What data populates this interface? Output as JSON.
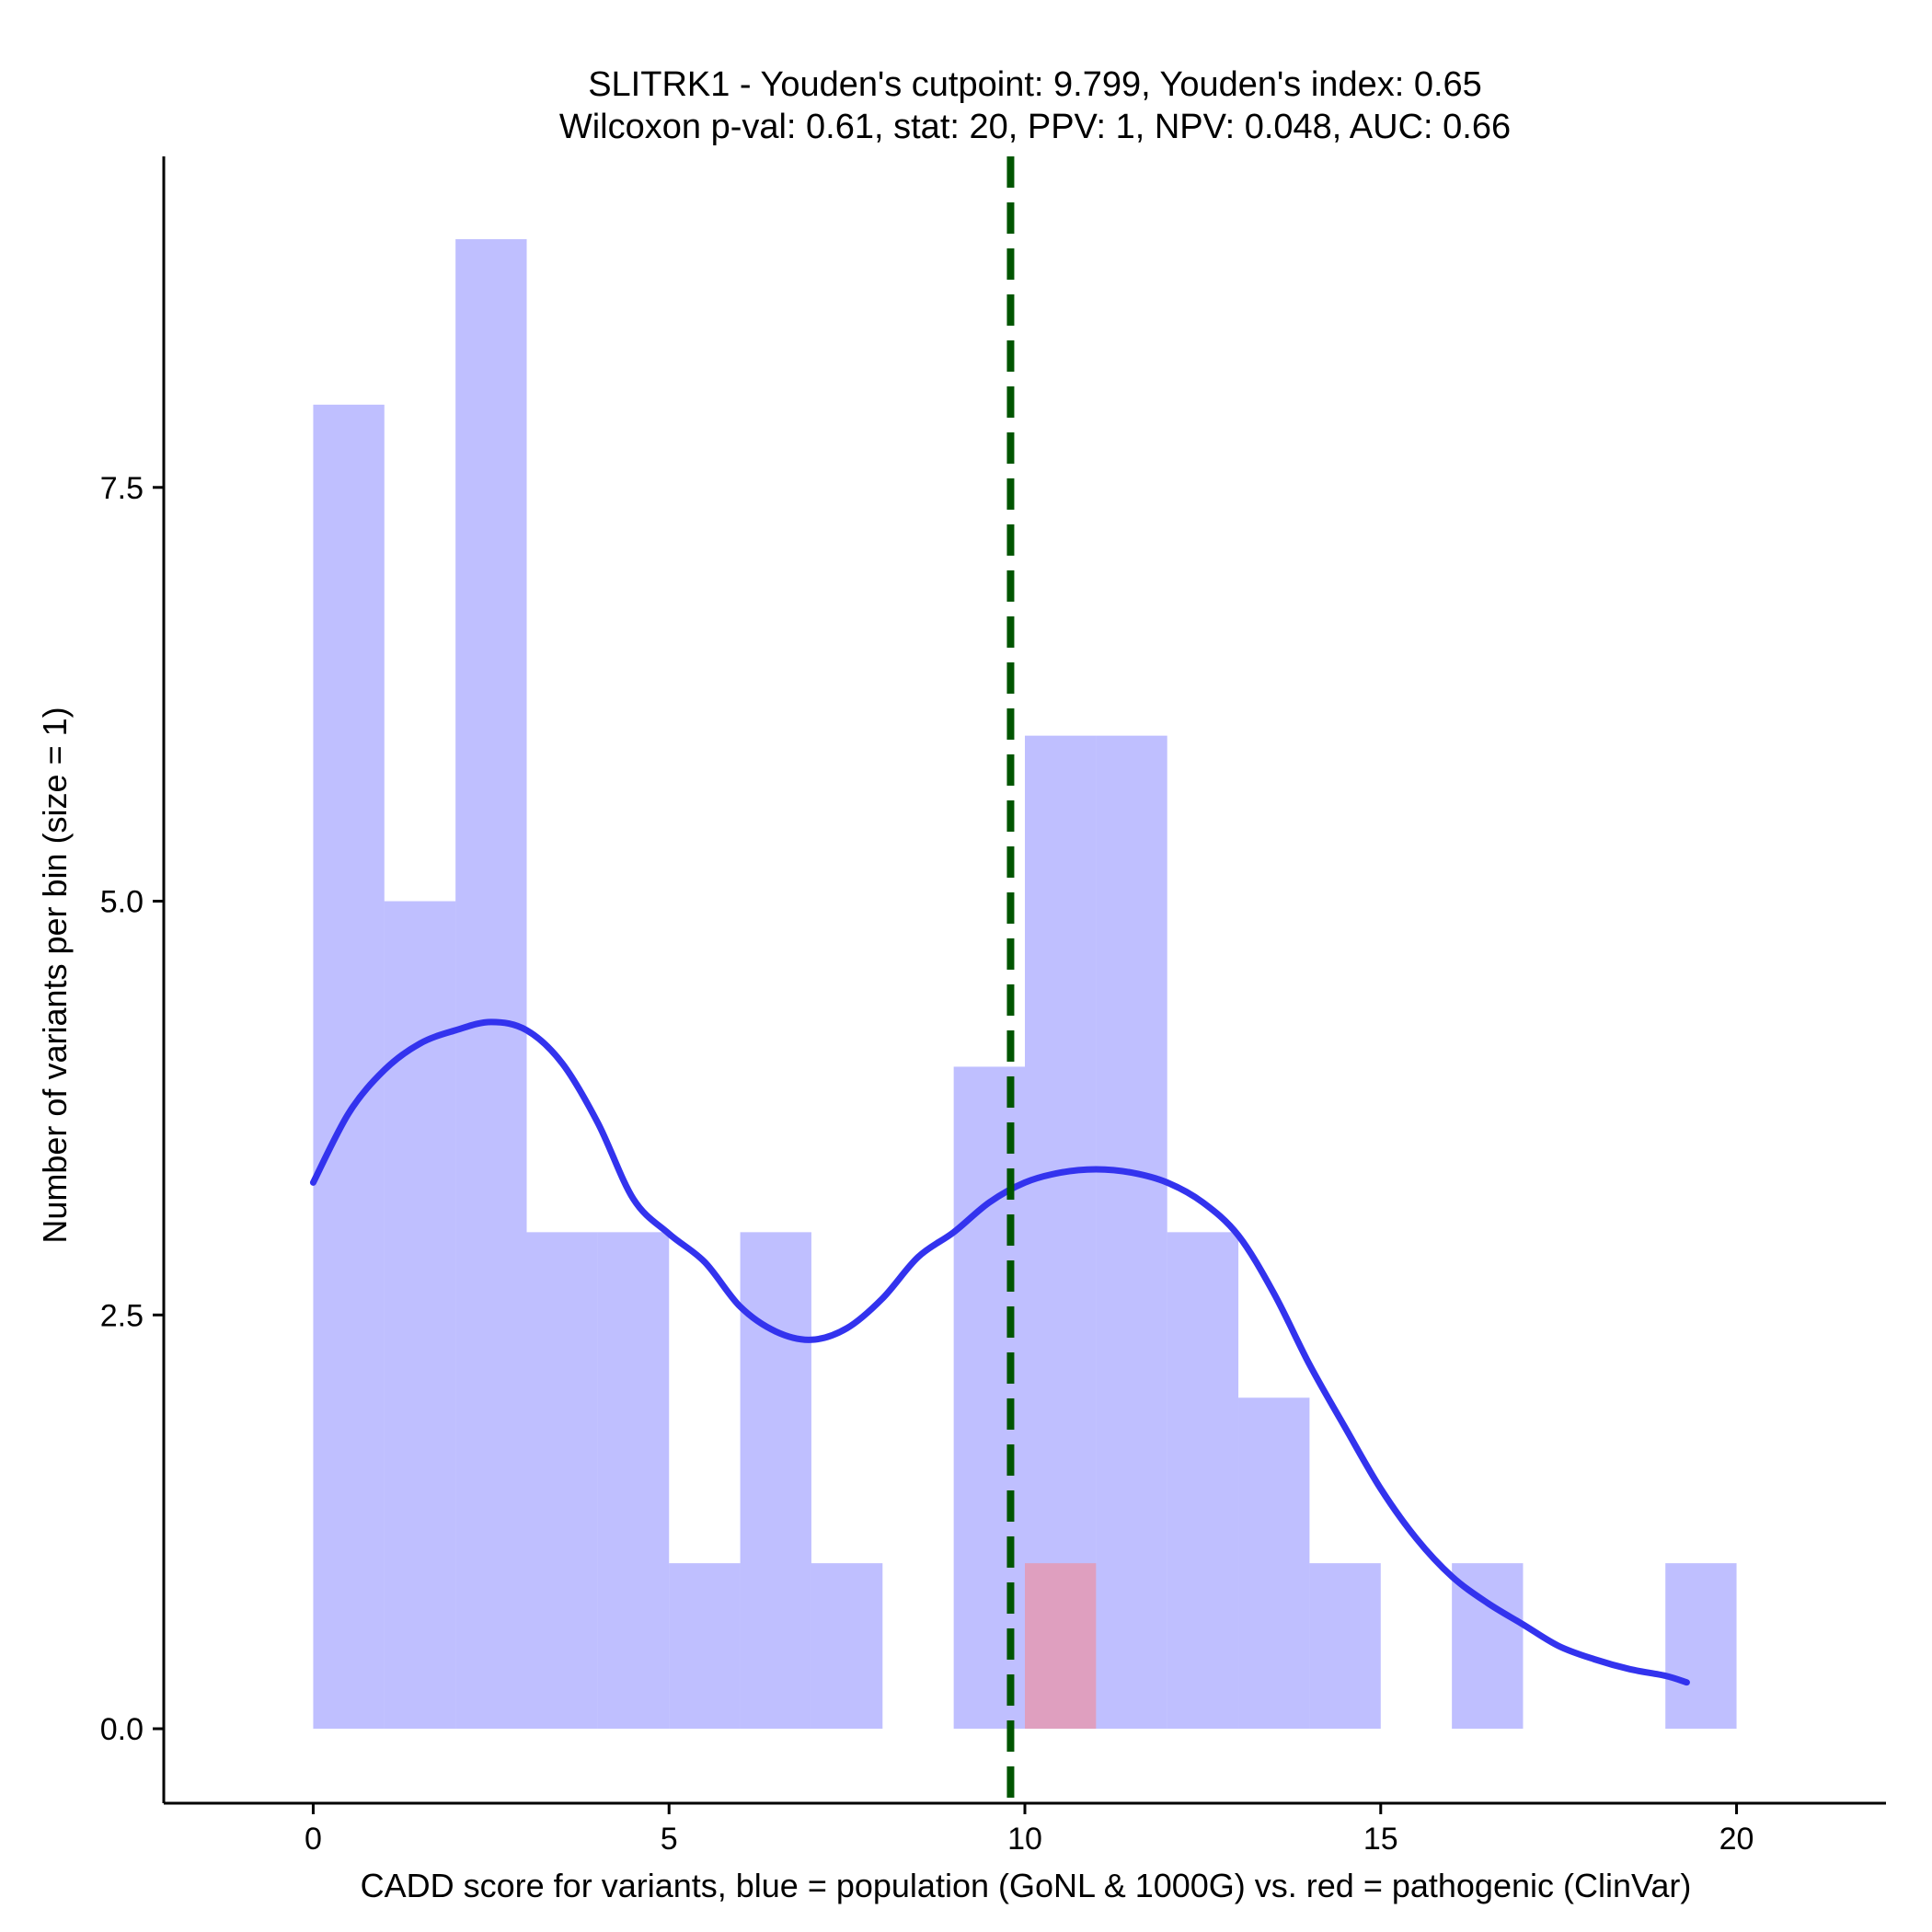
{
  "chart_data": {
    "type": "histogram",
    "title": "SLITRK1 - Youden's cutpoint: 9.799, Youden's index: 0.65",
    "subtitle": "Wilcoxon p-val: 0.61, stat: 20, PPV: 1, NPV: 0.048, AUC: 0.66",
    "xlabel": "CADD score for variants, blue = population (GoNL & 1000G) vs. red = pathogenic (ClinVar)",
    "ylabel": "Number of variants per bin (size = 1)",
    "xlim": [
      -2.1,
      22.1
    ],
    "ylim": [
      -0.45,
      9.5
    ],
    "x_ticks": [
      {
        "value": 0,
        "label": "0"
      },
      {
        "value": 5,
        "label": "5"
      },
      {
        "value": 10,
        "label": "10"
      },
      {
        "value": 15,
        "label": "15"
      },
      {
        "value": 20,
        "label": "20"
      }
    ],
    "y_ticks": [
      {
        "value": 0,
        "label": "0.0"
      },
      {
        "value": 2.5,
        "label": "2.5"
      },
      {
        "value": 5,
        "label": "5.0"
      },
      {
        "value": 7.5,
        "label": "7.5"
      }
    ],
    "cutpoint": 9.799,
    "series": [
      {
        "name": "population (GoNL & 1000G)",
        "color": "#8080ff",
        "bin_width": 1,
        "bins": [
          {
            "x0": 0,
            "count": 8
          },
          {
            "x0": 1,
            "count": 5
          },
          {
            "x0": 2,
            "count": 9
          },
          {
            "x0": 3,
            "count": 3
          },
          {
            "x0": 4,
            "count": 3
          },
          {
            "x0": 5,
            "count": 1
          },
          {
            "x0": 6,
            "count": 3
          },
          {
            "x0": 7,
            "count": 1
          },
          {
            "x0": 9,
            "count": 4
          },
          {
            "x0": 10,
            "count": 6
          },
          {
            "x0": 11,
            "count": 6
          },
          {
            "x0": 12,
            "count": 3
          },
          {
            "x0": 13,
            "count": 2
          },
          {
            "x0": 14,
            "count": 1
          },
          {
            "x0": 16,
            "count": 1
          },
          {
            "x0": 19,
            "count": 1
          }
        ]
      },
      {
        "name": "pathogenic (ClinVar)",
        "color": "#ff8080",
        "bin_width": 1,
        "bins": [
          {
            "x0": 10,
            "count": 1
          }
        ]
      }
    ],
    "density_curve": {
      "name": "population density",
      "color": "#3333ee",
      "x": [
        0,
        0.5,
        1,
        1.5,
        2,
        2.5,
        3,
        3.5,
        4,
        4.5,
        5,
        5.5,
        6,
        6.5,
        7,
        7.5,
        8,
        8.5,
        9,
        9.5,
        10,
        10.5,
        11,
        11.5,
        12,
        12.5,
        13,
        13.5,
        14,
        14.5,
        15,
        15.5,
        16,
        16.5,
        17,
        17.5,
        18,
        18.5,
        19,
        19.3
      ],
      "y": [
        3.3,
        3.72,
        3.98,
        4.14,
        4.22,
        4.27,
        4.22,
        4.02,
        3.66,
        3.2,
        2.99,
        2.82,
        2.55,
        2.4,
        2.35,
        2.42,
        2.6,
        2.85,
        3.0,
        3.18,
        3.3,
        3.36,
        3.38,
        3.36,
        3.3,
        3.18,
        2.98,
        2.63,
        2.2,
        1.82,
        1.45,
        1.15,
        0.92,
        0.76,
        0.63,
        0.5,
        0.42,
        0.36,
        0.32,
        0.28
      ]
    }
  }
}
